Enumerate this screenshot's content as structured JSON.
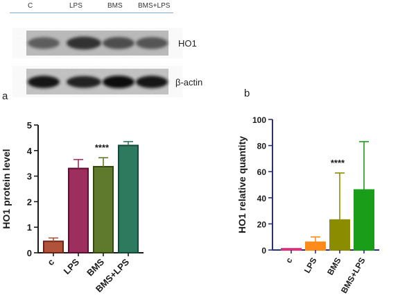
{
  "blot": {
    "lanes": [
      "C",
      "LPS",
      "BMS",
      "BMS+LPS"
    ],
    "rows": [
      {
        "label": "HO1",
        "intensity": [
          0.45,
          0.75,
          0.55,
          0.5
        ]
      },
      {
        "label": "β-actin",
        "intensity": [
          0.95,
          0.85,
          1.0,
          0.95
        ]
      }
    ]
  },
  "panel_a": {
    "letter": "a"
  },
  "panel_b": {
    "letter": "b"
  },
  "chart_data": [
    {
      "type": "bar",
      "ylabel": "HO1 protein level",
      "categories": [
        "c",
        "LPS",
        "BMS",
        "BMS+LPS"
      ],
      "values": [
        0.45,
        3.3,
        3.37,
        4.2
      ],
      "errors": [
        0.13,
        0.35,
        0.35,
        0.15
      ],
      "colors": [
        "#b0533a",
        "#9c2f5e",
        "#5f7a2c",
        "#2e7a5e"
      ],
      "edge_colors": [
        "#6e2414",
        "#5c0f33",
        "#34470f",
        "#134a37"
      ],
      "ylim": [
        0,
        5
      ],
      "yticks": [
        0,
        1,
        2,
        3,
        4,
        5
      ],
      "annotation": {
        "text": "****",
        "category_index": 2
      }
    },
    {
      "type": "bar",
      "ylabel": "HO1 relative quantity",
      "categories": [
        "c",
        "LPS",
        "BMS",
        "BMS+LPS"
      ],
      "values": [
        1,
        6,
        23,
        46
      ],
      "errors": [
        0,
        4,
        36,
        37
      ],
      "colors": [
        "#e0307a",
        "#ff8c1a",
        "#8c8c00",
        "#1a9e1a"
      ],
      "edge_colors": [
        "#e0307a",
        "#ff8c1a",
        "#8c8c00",
        "#1a9e1a"
      ],
      "ylim": [
        0,
        100
      ],
      "yticks": [
        0,
        20,
        40,
        60,
        80,
        100
      ],
      "annotation": {
        "text": "****",
        "category_index": 2
      }
    }
  ]
}
